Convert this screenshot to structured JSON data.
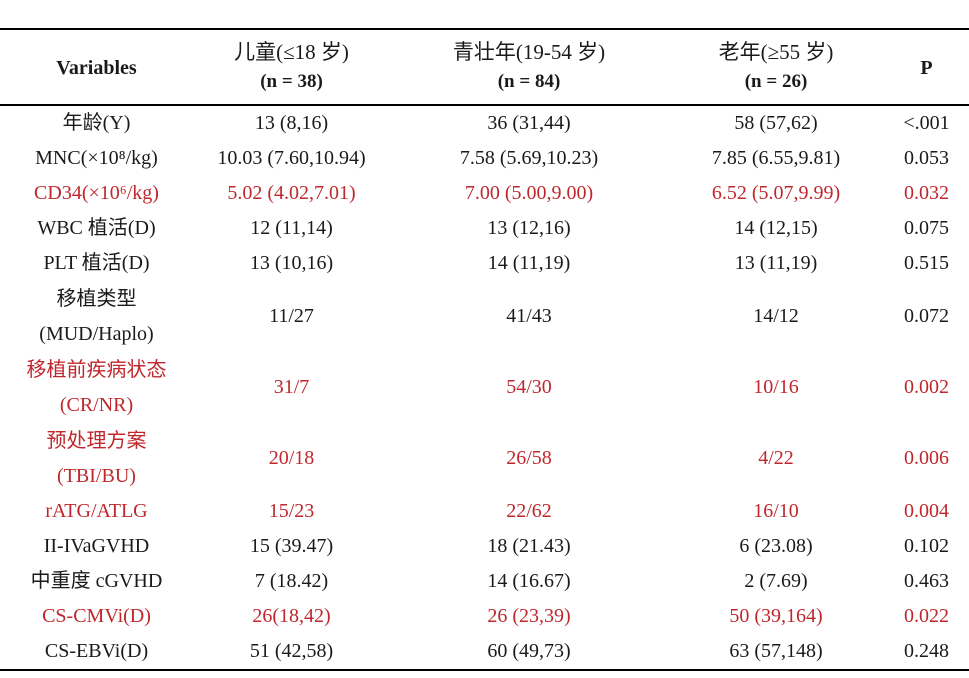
{
  "header": {
    "variables": "Variables",
    "children": {
      "title": "儿童(≤18 岁)",
      "n": "(n = 38)"
    },
    "adults": {
      "title": "青壮年(19-54 岁)",
      "n": "(n = 84)"
    },
    "elderly": {
      "title": "老年(≥55 岁)",
      "n": "(n = 26)"
    },
    "p": "P"
  },
  "highlight_color": "#c0272d",
  "rows": [
    {
      "var": [
        "年龄(Y)"
      ],
      "c1": "13 (8,16)",
      "c2": "36 (31,44)",
      "c3": "58 (57,62)",
      "p": "<.001",
      "red": false
    },
    {
      "var": [
        "MNC(×10⁸/kg)"
      ],
      "c1": "10.03 (7.60,10.94)",
      "c2": "7.58 (5.69,10.23)",
      "c3": "7.85 (6.55,9.81)",
      "p": "0.053",
      "red": false
    },
    {
      "var": [
        "CD34(×10⁶/kg)"
      ],
      "c1": "5.02 (4.02,7.01)",
      "c2": "7.00 (5.00,9.00)",
      "c3": "6.52 (5.07,9.99)",
      "p": "0.032",
      "red": true
    },
    {
      "var": [
        "WBC 植活(D)"
      ],
      "c1": "12 (11,14)",
      "c2": "13 (12,16)",
      "c3": "14 (12,15)",
      "p": "0.075",
      "red": false
    },
    {
      "var": [
        "PLT 植活(D)"
      ],
      "c1": "13 (10,16)",
      "c2": "14 (11,19)",
      "c3": "13 (11,19)",
      "p": "0.515",
      "red": false
    },
    {
      "var": [
        "移植类型",
        "(MUD/Haplo)"
      ],
      "c1": "11/27",
      "c2": "41/43",
      "c3": "14/12",
      "p": "0.072",
      "red": false
    },
    {
      "var": [
        "移植前疾病状态",
        "(CR/NR)"
      ],
      "c1": "31/7",
      "c2": "54/30",
      "c3": "10/16",
      "p": "0.002",
      "red": true
    },
    {
      "var": [
        "预处理方案",
        "(TBI/BU)"
      ],
      "c1": "20/18",
      "c2": "26/58",
      "c3": "4/22",
      "p": "0.006",
      "red": true
    },
    {
      "var": [
        "rATG/ATLG"
      ],
      "c1": "15/23",
      "c2": "22/62",
      "c3": "16/10",
      "p": "0.004",
      "red": true
    },
    {
      "var": [
        "II-IVaGVHD"
      ],
      "c1": "15 (39.47)",
      "c2": "18 (21.43)",
      "c3": "6 (23.08)",
      "p": "0.102",
      "red": false
    },
    {
      "var": [
        "中重度 cGVHD"
      ],
      "c1": "7 (18.42)",
      "c2": "14 (16.67)",
      "c3": "2 (7.69)",
      "p": "0.463",
      "red": false
    },
    {
      "var": [
        "CS-CMVi(D)"
      ],
      "c1": "26(18,42)",
      "c2": "26 (23,39)",
      "c3": "50 (39,164)",
      "p": "0.022",
      "red": true
    },
    {
      "var": [
        "CS-EBVi(D)"
      ],
      "c1": "51 (42,58)",
      "c2": "60 (49,73)",
      "c3": "63 (57,148)",
      "p": "0.248",
      "red": false
    }
  ]
}
